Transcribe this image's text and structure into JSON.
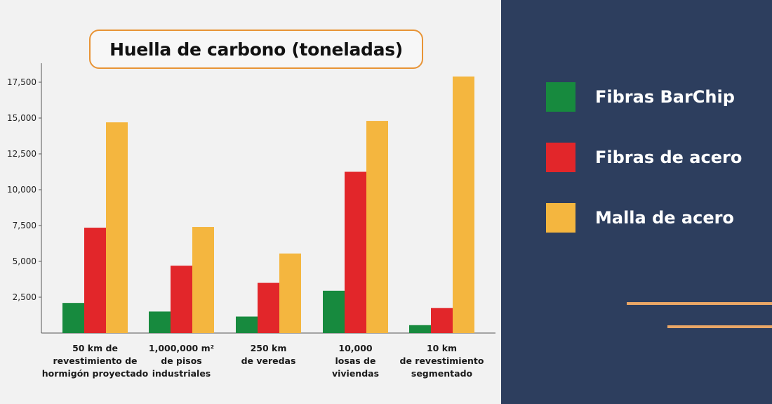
{
  "chart_data": {
    "type": "bar",
    "title": "Huella de carbono (toneladas)",
    "categories": [
      [
        "50 km de",
        "revestimiento de",
        "hormigón proyectado"
      ],
      [
        "1,000,000 m²",
        "de pisos",
        "industriales"
      ],
      [
        "250 km",
        "de veredas"
      ],
      [
        "10,000",
        "losas de",
        "viviendas"
      ],
      [
        "10 km",
        "de revestimiento",
        "segmentado"
      ]
    ],
    "series": [
      {
        "name": "Fibras BarChip",
        "color": "#178a3e",
        "values": [
          2100,
          1500,
          1150,
          2950,
          550
        ]
      },
      {
        "name": "Fibras de acero",
        "color": "#e2262a",
        "values": [
          7350,
          4700,
          3500,
          11250,
          1750
        ]
      },
      {
        "name": "Malla de acero",
        "color": "#f4b63f",
        "values": [
          14700,
          7400,
          5550,
          14800,
          17900
        ]
      }
    ],
    "yticks": [
      "2,500",
      "5,000",
      "7,500",
      "10,000",
      "12,500",
      "15,000",
      "17,500"
    ],
    "ytick_values": [
      2500,
      5000,
      7500,
      10000,
      12500,
      15000,
      17500
    ],
    "ylim": [
      0,
      18000
    ],
    "grid": false,
    "legend_position": "right"
  }
}
